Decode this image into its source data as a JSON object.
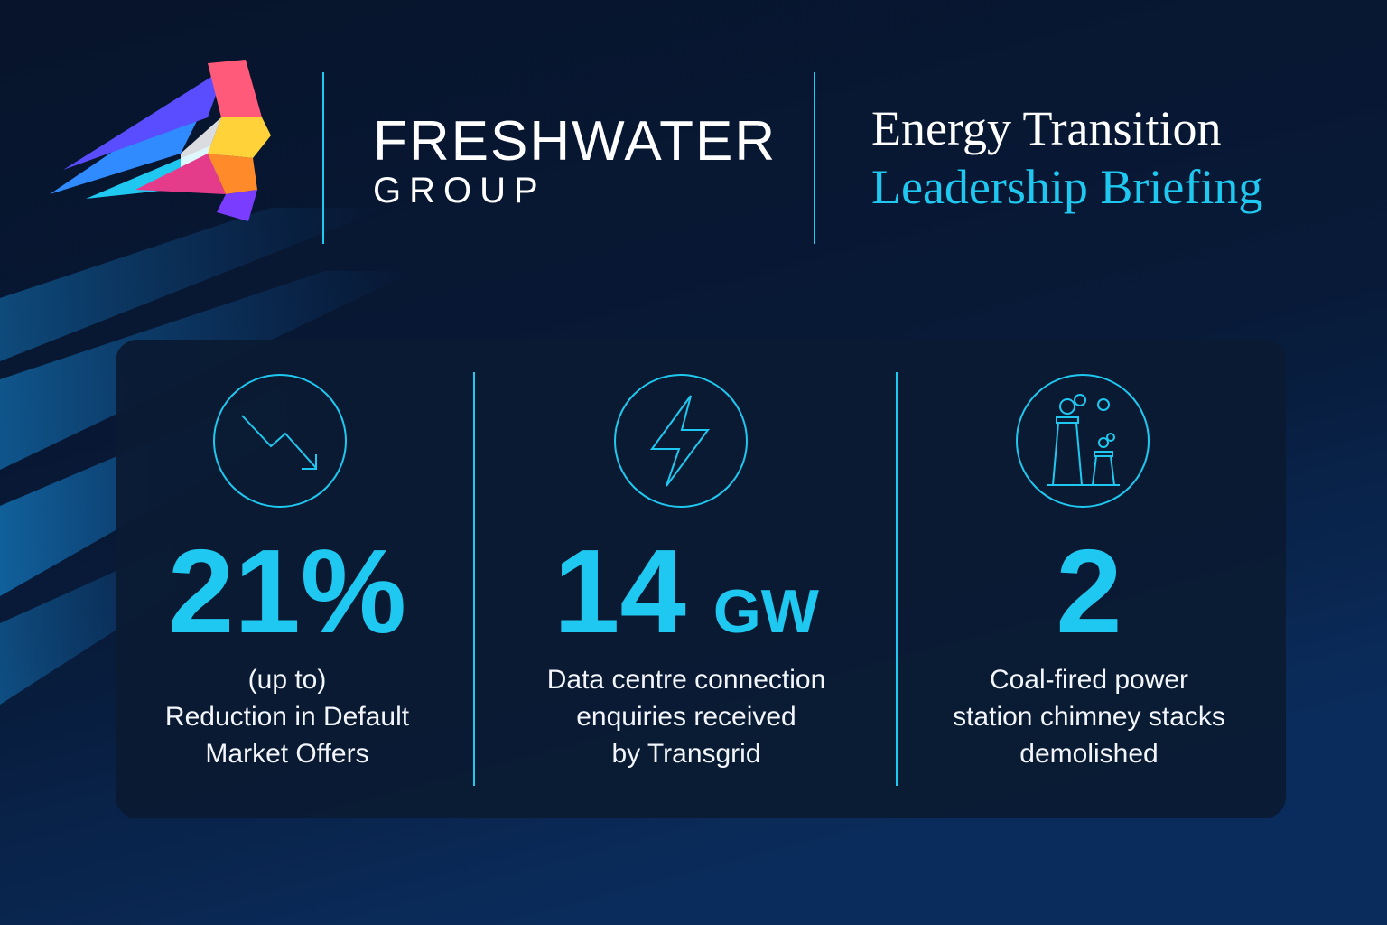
{
  "brand": {
    "name": "FRESHWATER",
    "sub": "GROUP"
  },
  "title": {
    "line1": "Energy Transition",
    "line2": "Leadership Briefing"
  },
  "stats": [
    {
      "value": "21%",
      "lines": [
        "(up to)",
        "Reduction in Default",
        "Market Offers"
      ]
    },
    {
      "value": "14",
      "unit": "GW",
      "lines": [
        "Data centre connection",
        "enquiries received",
        "by Transgrid"
      ]
    },
    {
      "value": "2",
      "lines": [
        "Coal-fired power",
        "station chimney stacks",
        "demolished"
      ]
    }
  ]
}
